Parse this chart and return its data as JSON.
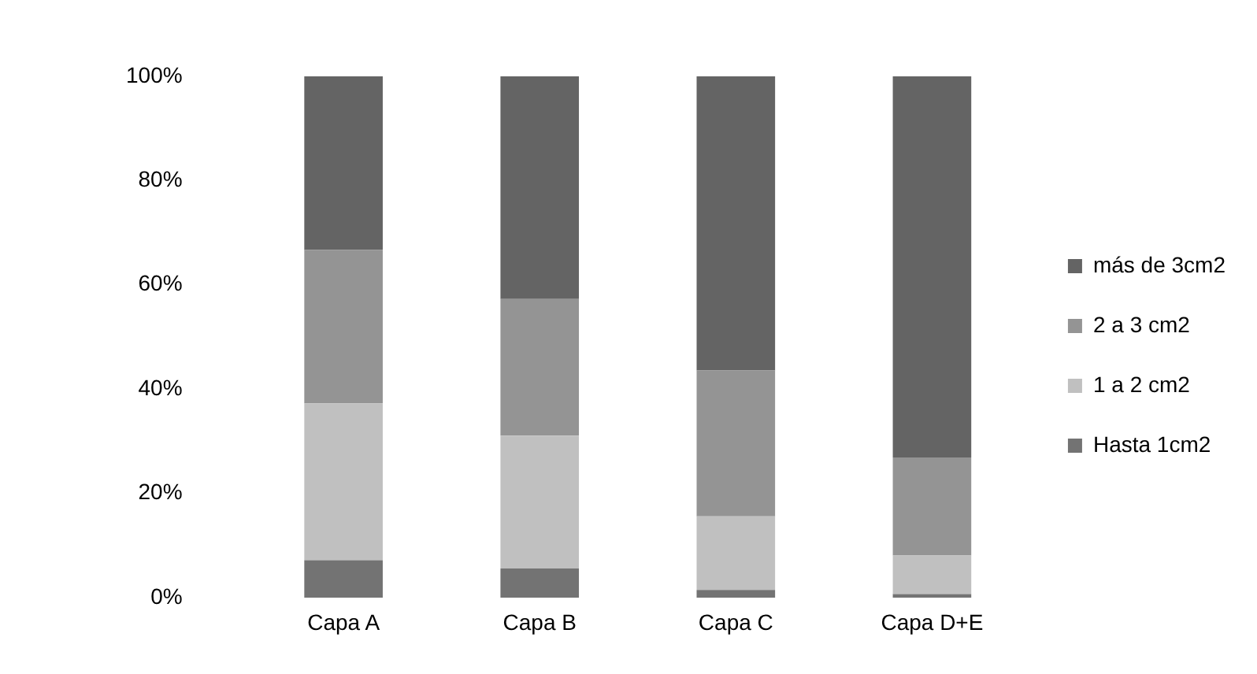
{
  "chart_data": {
    "type": "bar",
    "stacked": true,
    "categories": [
      "Capa A",
      "Capa B",
      "Capa C",
      "Capa D+E"
    ],
    "series": [
      {
        "name": "Hasta 1cm2",
        "color": "#737373",
        "values": [
          7.2,
          5.6,
          1.5,
          0.7
        ]
      },
      {
        "name": "1 a 2 cm2",
        "color": "#c0c0c0",
        "values": [
          30.1,
          25.5,
          14.1,
          7.4
        ]
      },
      {
        "name": "2 a 3 cm2",
        "color": "#949494",
        "values": [
          29.4,
          26.2,
          28.0,
          18.8
        ]
      },
      {
        "name": "más de 3cm2",
        "color": "#646464",
        "values": [
          33.3,
          42.7,
          56.4,
          73.1
        ]
      }
    ],
    "ylim": [
      0,
      100
    ],
    "yticks": [
      {
        "value": 0,
        "label": "0%"
      },
      {
        "value": 20,
        "label": "20%"
      },
      {
        "value": 40,
        "label": "40%"
      },
      {
        "value": 60,
        "label": "60%"
      },
      {
        "value": 80,
        "label": "80%"
      },
      {
        "value": 100,
        "label": "100%"
      }
    ],
    "grid": false,
    "legend": "right"
  }
}
